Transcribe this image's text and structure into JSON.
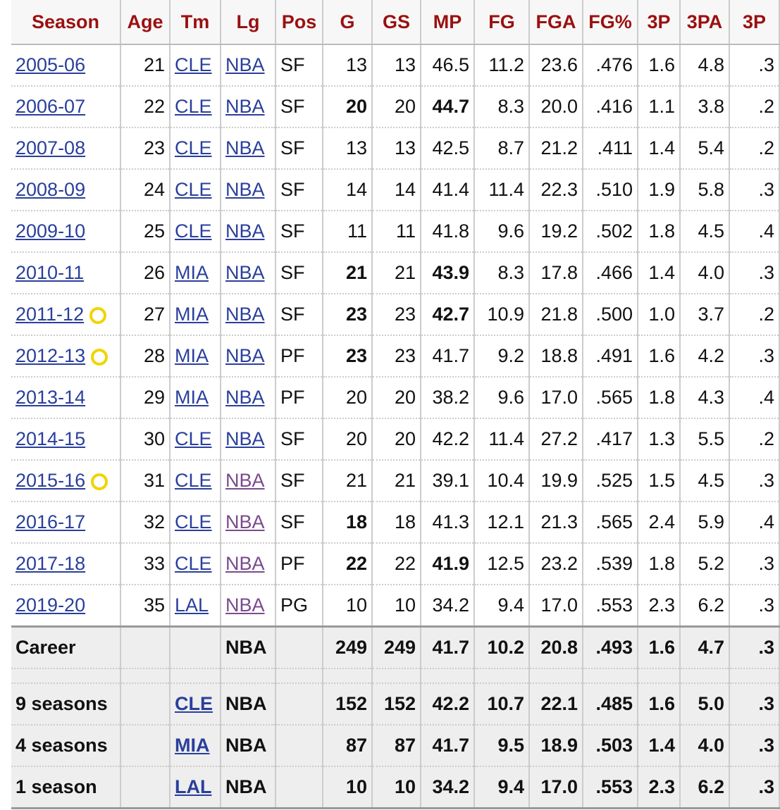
{
  "table": {
    "columns": [
      "Season",
      "Age",
      "Tm",
      "Lg",
      "Pos",
      "G",
      "GS",
      "MP",
      "FG",
      "FGA",
      "FG%",
      "3P",
      "3PA",
      "3P"
    ],
    "rows": [
      [
        "2005-06",
        "21",
        "CLE",
        "NBA",
        "SF",
        "13",
        "13",
        "46.5",
        "11.2",
        "23.6",
        ".476",
        "1.6",
        "4.8",
        ".3"
      ],
      [
        "2006-07",
        "22",
        "CLE",
        "NBA",
        "SF",
        "20",
        "20",
        "44.7",
        "8.3",
        "20.0",
        ".416",
        "1.1",
        "3.8",
        ".2"
      ],
      [
        "2007-08",
        "23",
        "CLE",
        "NBA",
        "SF",
        "13",
        "13",
        "42.5",
        "8.7",
        "21.2",
        ".411",
        "1.4",
        "5.4",
        ".2"
      ],
      [
        "2008-09",
        "24",
        "CLE",
        "NBA",
        "SF",
        "14",
        "14",
        "41.4",
        "11.4",
        "22.3",
        ".510",
        "1.9",
        "5.8",
        ".3"
      ],
      [
        "2009-10",
        "25",
        "CLE",
        "NBA",
        "SF",
        "11",
        "11",
        "41.8",
        "9.6",
        "19.2",
        ".502",
        "1.8",
        "4.5",
        ".4"
      ],
      [
        "2010-11",
        "26",
        "MIA",
        "NBA",
        "SF",
        "21",
        "21",
        "43.9",
        "8.3",
        "17.8",
        ".466",
        "1.4",
        "4.0",
        ".3"
      ],
      [
        "2011-12",
        "27",
        "MIA",
        "NBA",
        "SF",
        "23",
        "23",
        "42.7",
        "10.9",
        "21.8",
        ".500",
        "1.0",
        "3.7",
        ".2"
      ],
      [
        "2012-13",
        "28",
        "MIA",
        "NBA",
        "PF",
        "23",
        "23",
        "41.7",
        "9.2",
        "18.8",
        ".491",
        "1.6",
        "4.2",
        ".3"
      ],
      [
        "2013-14",
        "29",
        "MIA",
        "NBA",
        "PF",
        "20",
        "20",
        "38.2",
        "9.6",
        "17.0",
        ".565",
        "1.8",
        "4.3",
        ".4"
      ],
      [
        "2014-15",
        "30",
        "CLE",
        "NBA",
        "SF",
        "20",
        "20",
        "42.2",
        "11.4",
        "27.2",
        ".417",
        "1.3",
        "5.5",
        ".2"
      ],
      [
        "2015-16",
        "31",
        "CLE",
        "NBA",
        "SF",
        "21",
        "21",
        "39.1",
        "10.4",
        "19.9",
        ".525",
        "1.5",
        "4.5",
        ".3"
      ],
      [
        "2016-17",
        "32",
        "CLE",
        "NBA",
        "SF",
        "18",
        "18",
        "41.3",
        "12.1",
        "21.3",
        ".565",
        "2.4",
        "5.9",
        ".4"
      ],
      [
        "2017-18",
        "33",
        "CLE",
        "NBA",
        "PF",
        "22",
        "22",
        "41.9",
        "12.5",
        "23.2",
        ".539",
        "1.8",
        "5.2",
        ".3"
      ],
      [
        "2019-20",
        "35",
        "LAL",
        "NBA",
        "PG",
        "10",
        "10",
        "34.2",
        "9.4",
        "17.0",
        ".553",
        "2.3",
        "6.2",
        ".3"
      ]
    ],
    "totals": [
      [
        "Career",
        null,
        null,
        "NBA",
        null,
        "249",
        "249",
        "41.7",
        "10.2",
        "20.8",
        ".493",
        "1.6",
        "4.7",
        ".3"
      ],
      [
        "9 seasons",
        null,
        "CLE",
        "NBA",
        null,
        "152",
        "152",
        "42.2",
        "10.7",
        "22.1",
        ".485",
        "1.6",
        "5.0",
        ".3"
      ],
      [
        "4 seasons",
        null,
        "MIA",
        "NBA",
        null,
        "87",
        "87",
        "41.7",
        "9.5",
        "18.9",
        ".503",
        "1.4",
        "4.0",
        ".3"
      ],
      [
        "1 season",
        null,
        "LAL",
        "NBA",
        null,
        "10",
        "10",
        "34.2",
        "9.4",
        "17.0",
        ".553",
        "2.3",
        "6.2",
        ".3"
      ]
    ]
  }
}
